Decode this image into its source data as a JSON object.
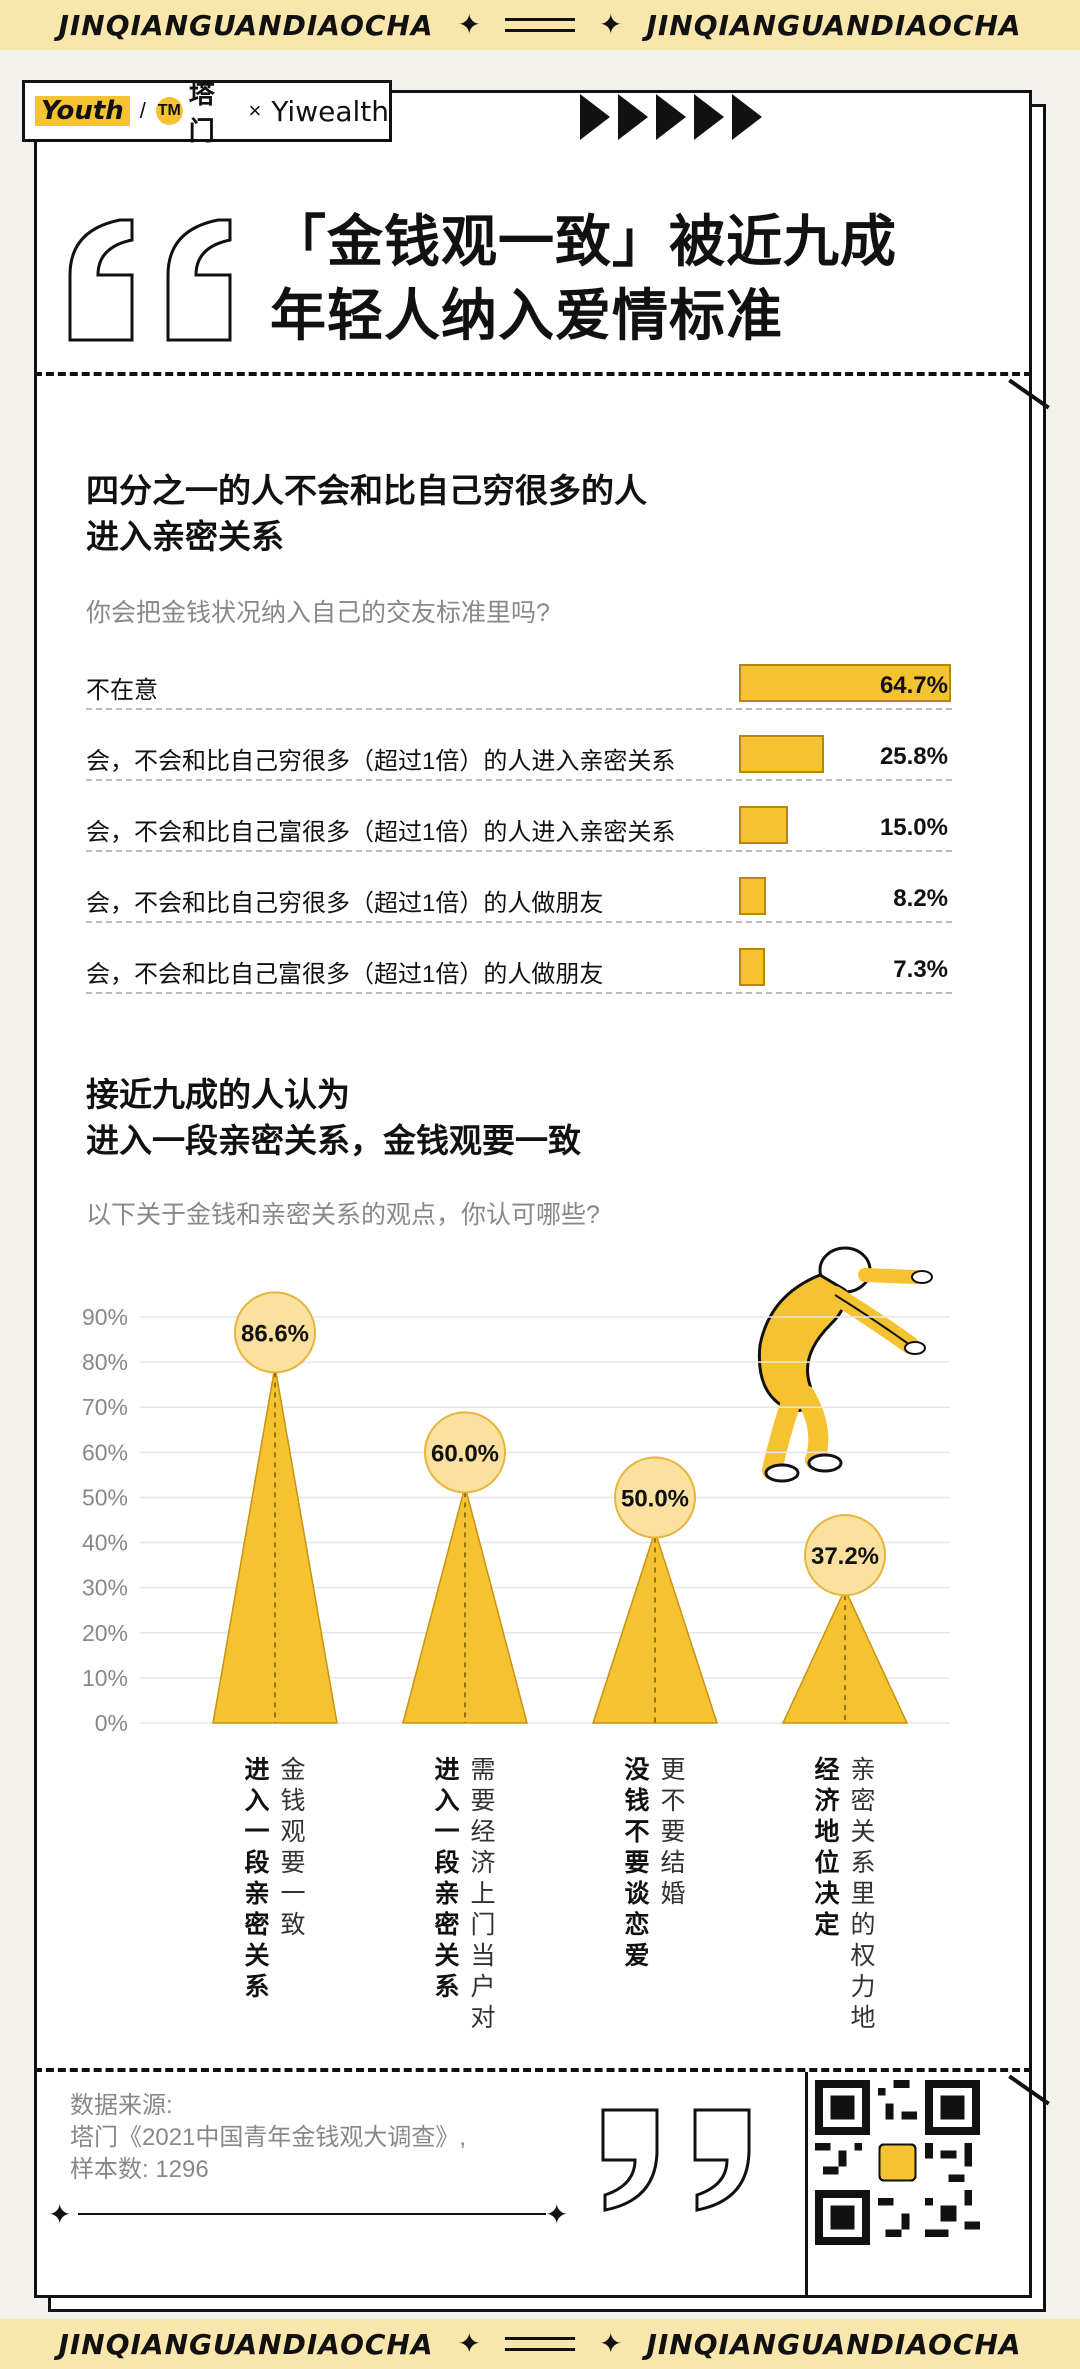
{
  "header": {
    "band_text": "JINQIANGUANDIAOCHA",
    "logo_youth": "Youth",
    "logo_tm": "塔门",
    "logo_tm_icon": "TM",
    "logo_x": "×",
    "logo_yw": "Yiwealth"
  },
  "title": {
    "line1": "「金钱观一致」被近九成",
    "line2": "年轻人纳入爱情标准"
  },
  "section1": {
    "heading_line1": "四分之一的人不会和比自己穷很多的人",
    "heading_line2": "进入亲密关系",
    "question": "你会把金钱状况纳入自己的交友标准里吗?",
    "rows": [
      {
        "label": "不在意",
        "value": 64.7,
        "display": "64.7%"
      },
      {
        "label": "会，不会和比自己穷很多（超过1倍）的人进入亲密关系",
        "value": 25.8,
        "display": "25.8%"
      },
      {
        "label": "会，不会和比自己富很多（超过1倍）的人进入亲密关系",
        "value": 15.0,
        "display": "15.0%"
      },
      {
        "label": "会，不会和比自己穷很多（超过1倍）的人做朋友",
        "value": 8.2,
        "display": "8.2%"
      },
      {
        "label": "会，不会和比自己富很多（超过1倍）的人做朋友",
        "value": 7.3,
        "display": "7.3%"
      }
    ]
  },
  "section2": {
    "heading_line1": "接近九成的人认为",
    "heading_line2": "进入一段亲密关系，金钱观要一致",
    "question": "以下关于金钱和亲密关系的观点，你认可哪些?"
  },
  "chart_data": {
    "type": "bar",
    "y_ticks": [
      "90%",
      "80%",
      "70%",
      "60%",
      "50%",
      "40%",
      "30%",
      "20%",
      "10%",
      "0%"
    ],
    "ylim": [
      0,
      90
    ],
    "categories": [
      {
        "bold": "进入一段亲密关系",
        "light": "金钱观要一致"
      },
      {
        "bold": "进入一段亲密关系",
        "light": "需要经济上门当户对"
      },
      {
        "bold": "没钱不要谈恋爱",
        "light": "更不要结婚"
      },
      {
        "bold": "经济地位决定",
        "light": "亲密关系里的权力地位"
      }
    ],
    "values": [
      86.6,
      60.0,
      50.0,
      37.2
    ],
    "labels": [
      "86.6%",
      "60.0%",
      "50.0%",
      "37.2%"
    ],
    "colors": {
      "cone": "#f5c232",
      "bubble": "#fbe1a0"
    }
  },
  "footer": {
    "source_line1": "数据来源:",
    "source_line2": "塔门《2021中国青年金钱观大调查》,",
    "source_line3": "样本数: 1296"
  }
}
